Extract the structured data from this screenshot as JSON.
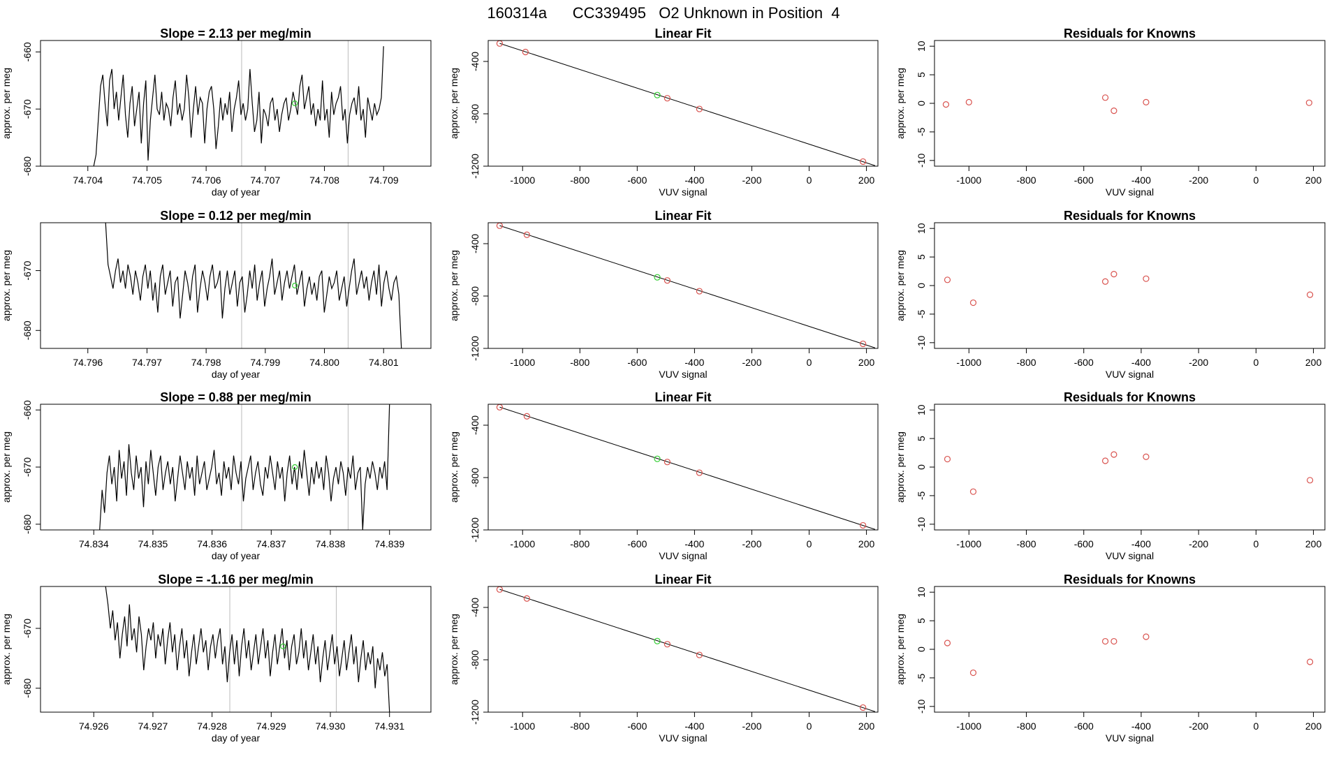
{
  "page_title": "160314a      CC339495   O2 Unknown in Position  4",
  "chart_data": [
    {
      "row": 0,
      "panel": "timeseries",
      "type": "line",
      "title": "Slope =  2.13  per meg/min",
      "xlabel": "day of year",
      "ylabel": "approx. per meg",
      "xlim": [
        74.7032,
        74.7098
      ],
      "ylim": [
        -680,
        -658
      ],
      "xticks": [
        "74.704",
        "74.705",
        "74.706",
        "74.707",
        "74.708",
        "74.709"
      ],
      "yticks": [
        "-660",
        "-670",
        "-680"
      ],
      "vlines": [
        74.7066,
        74.7084
      ],
      "marker": {
        "x": 74.7075,
        "y": -669
      },
      "series": {
        "x_start": 74.7041,
        "x_end": 74.709,
        "y": [
          -680,
          -678,
          -672,
          -666,
          -664,
          -669,
          -673,
          -665,
          -663,
          -670,
          -667,
          -672,
          -668,
          -664,
          -671,
          -675,
          -669,
          -666,
          -673,
          -670,
          -667,
          -676,
          -669,
          -665,
          -679,
          -672,
          -668,
          -664,
          -670,
          -671,
          -667,
          -672,
          -669,
          -670,
          -673,
          -668,
          -665,
          -671,
          -669,
          -672,
          -670,
          -664,
          -668,
          -675,
          -670,
          -666,
          -671,
          -668,
          -669,
          -676,
          -670,
          -667,
          -666,
          -670,
          -677,
          -673,
          -668,
          -672,
          -669,
          -671,
          -667,
          -674,
          -670,
          -668,
          -665,
          -671,
          -669,
          -672,
          -670,
          -663,
          -669,
          -674,
          -672,
          -667,
          -676,
          -670,
          -671,
          -673,
          -669,
          -668,
          -672,
          -670,
          -674,
          -671,
          -669,
          -668,
          -672,
          -670,
          -667,
          -669,
          -671,
          -666,
          -664,
          -670,
          -668,
          -666,
          -671,
          -669,
          -673,
          -670,
          -672,
          -665,
          -672,
          -670,
          -675,
          -667,
          -671,
          -669,
          -668,
          -666,
          -672,
          -670,
          -676,
          -671,
          -669,
          -668,
          -671,
          -666,
          -672,
          -670,
          -675,
          -668,
          -670,
          -672,
          -669,
          -671,
          -670,
          -668,
          -659
        ]
      }
    },
    {
      "row": 0,
      "panel": "fit",
      "type": "scatter",
      "title": "Linear Fit",
      "xlabel": "VUV signal",
      "ylabel": "approx. per meg",
      "xlim": [
        -1120,
        240
      ],
      "ylim": [
        -1200,
        -240
      ],
      "xticks": [
        "-1000",
        "-800",
        "-600",
        "-400",
        "-200",
        "0",
        "200"
      ],
      "yticks": [
        "-400",
        "-800",
        "-1200"
      ],
      "line": [
        [
          -1080,
          -262
        ],
        [
          230,
          -1196
        ]
      ],
      "points": [
        [
          -1080,
          -263
        ],
        [
          -990,
          -328
        ],
        [
          -495,
          -681
        ],
        [
          -383,
          -763
        ],
        [
          188,
          -1165
        ]
      ],
      "unknown": [
        [
          -530,
          -657
        ]
      ]
    },
    {
      "row": 0,
      "panel": "residuals",
      "type": "scatter",
      "title": "Residuals for Knowns",
      "xlabel": "VUV signal",
      "ylabel": "approx. per meg",
      "xlim": [
        -1120,
        240
      ],
      "ylim": [
        -11,
        11
      ],
      "xticks": [
        "-1000",
        "-800",
        "-600",
        "-400",
        "-200",
        "0",
        "200"
      ],
      "yticks": [
        "10",
        "5",
        "0",
        "-5",
        "-10"
      ],
      "points": [
        [
          -1080,
          -0.2
        ],
        [
          -1000,
          0.2
        ],
        [
          -525,
          1.0
        ],
        [
          -495,
          -1.3
        ],
        [
          -383,
          0.2
        ],
        [
          185,
          0.1
        ]
      ]
    },
    {
      "row": 1,
      "panel": "timeseries",
      "type": "line",
      "title": "Slope =  0.12  per meg/min",
      "xlabel": "day of year",
      "ylabel": "approx. per meg",
      "xlim": [
        74.7952,
        74.8018
      ],
      "ylim": [
        -683,
        -662
      ],
      "xticks": [
        "74.796",
        "74.797",
        "74.798",
        "74.799",
        "74.800",
        "74.801"
      ],
      "yticks": [
        "-670",
        "-680"
      ],
      "vlines": [
        74.7986,
        74.8004
      ],
      "marker": {
        "x": 74.7995,
        "y": -672.5
      },
      "series": {
        "x_start": 74.7963,
        "x_end": 74.8013,
        "y": [
          -662,
          -669,
          -671,
          -673,
          -670,
          -668,
          -672,
          -670,
          -673,
          -669,
          -671,
          -674,
          -670,
          -672,
          -675,
          -671,
          -669,
          -673,
          -670,
          -675,
          -672,
          -677,
          -671,
          -669,
          -674,
          -672,
          -670,
          -676,
          -672,
          -671,
          -678,
          -674,
          -670,
          -672,
          -675,
          -671,
          -669,
          -677,
          -673,
          -670,
          -672,
          -675,
          -671,
          -669,
          -673,
          -672,
          -670,
          -678,
          -673,
          -670,
          -674,
          -672,
          -670,
          -676,
          -672,
          -671,
          -677,
          -674,
          -670,
          -673,
          -669,
          -675,
          -672,
          -670,
          -676,
          -673,
          -671,
          -668,
          -674,
          -672,
          -670,
          -675,
          -672,
          -670,
          -673,
          -671,
          -669,
          -674,
          -672,
          -670,
          -676,
          -673,
          -671,
          -674,
          -672,
          -675,
          -671,
          -670,
          -677,
          -674,
          -671,
          -673,
          -672,
          -670,
          -675,
          -673,
          -671,
          -676,
          -673,
          -670,
          -668,
          -674,
          -672,
          -670,
          -673,
          -671,
          -675,
          -672,
          -670,
          -674,
          -669,
          -676,
          -672,
          -670,
          -673,
          -675,
          -672,
          -671,
          -674,
          -683
        ]
      }
    },
    {
      "row": 1,
      "panel": "fit",
      "type": "scatter",
      "title": "Linear Fit",
      "xlabel": "VUV signal",
      "ylabel": "approx. per meg",
      "xlim": [
        -1120,
        240
      ],
      "ylim": [
        -1200,
        -240
      ],
      "xticks": [
        "-1000",
        "-800",
        "-600",
        "-400",
        "-200",
        "0",
        "200"
      ],
      "yticks": [
        "-400",
        "-800",
        "-1200"
      ],
      "line": [
        [
          -1080,
          -262
        ],
        [
          230,
          -1196
        ]
      ],
      "points": [
        [
          -1080,
          -263
        ],
        [
          -985,
          -332
        ],
        [
          -495,
          -681
        ],
        [
          -383,
          -763
        ],
        [
          188,
          -1165
        ]
      ],
      "unknown": [
        [
          -530,
          -657
        ]
      ]
    },
    {
      "row": 1,
      "panel": "residuals",
      "type": "scatter",
      "title": "Residuals for Knowns",
      "xlabel": "VUV signal",
      "ylabel": "approx. per meg",
      "xlim": [
        -1120,
        240
      ],
      "ylim": [
        -11,
        11
      ],
      "xticks": [
        "-1000",
        "-800",
        "-600",
        "-400",
        "-200",
        "0",
        "200"
      ],
      "yticks": [
        "10",
        "5",
        "0",
        "-5",
        "-10"
      ],
      "points": [
        [
          -1075,
          1.0
        ],
        [
          -985,
          -3.0
        ],
        [
          -525,
          0.7
        ],
        [
          -495,
          2.0
        ],
        [
          -383,
          1.2
        ],
        [
          188,
          -1.6
        ]
      ]
    },
    {
      "row": 2,
      "panel": "timeseries",
      "type": "line",
      "title": "Slope =  0.88  per meg/min",
      "xlabel": "day of year",
      "ylabel": "approx. per meg",
      "xlim": [
        74.8331,
        74.8397
      ],
      "ylim": [
        -681,
        -659
      ],
      "xticks": [
        "74.834",
        "74.835",
        "74.836",
        "74.837",
        "74.838",
        "74.839"
      ],
      "yticks": [
        "-660",
        "-670",
        "-680"
      ],
      "vlines": [
        74.8365,
        74.8383
      ],
      "marker": {
        "x": 74.8374,
        "y": -670
      },
      "series": {
        "x_start": 74.8341,
        "x_end": 74.839,
        "y": [
          -681,
          -674,
          -678,
          -671,
          -668,
          -673,
          -670,
          -676,
          -667,
          -672,
          -669,
          -675,
          -666,
          -671,
          -674,
          -668,
          -672,
          -670,
          -677,
          -669,
          -673,
          -667,
          -671,
          -675,
          -670,
          -668,
          -674,
          -671,
          -669,
          -673,
          -670,
          -676,
          -672,
          -668,
          -671,
          -674,
          -669,
          -672,
          -670,
          -675,
          -668,
          -673,
          -671,
          -669,
          -674,
          -672,
          -670,
          -667,
          -673,
          -671,
          -675,
          -669,
          -672,
          -670,
          -674,
          -668,
          -671,
          -673,
          -669,
          -676,
          -672,
          -670,
          -668,
          -674,
          -671,
          -669,
          -673,
          -675,
          -670,
          -672,
          -668,
          -671,
          -674,
          -669,
          -672,
          -670,
          -676,
          -671,
          -668,
          -673,
          -670,
          -674,
          -669,
          -672,
          -667,
          -671,
          -675,
          -670,
          -673,
          -669,
          -672,
          -670,
          -674,
          -668,
          -671,
          -676,
          -672,
          -670,
          -673,
          -669,
          -671,
          -675,
          -670,
          -672,
          -668,
          -674,
          -671,
          -670,
          -681,
          -673,
          -670,
          -672,
          -669,
          -671,
          -674,
          -670,
          -672,
          -669,
          -674,
          -659
        ]
      }
    },
    {
      "row": 2,
      "panel": "fit",
      "type": "scatter",
      "title": "Linear Fit",
      "xlabel": "VUV signal",
      "ylabel": "approx. per meg",
      "xlim": [
        -1120,
        240
      ],
      "ylim": [
        -1200,
        -240
      ],
      "xticks": [
        "-1000",
        "-800",
        "-600",
        "-400",
        "-200",
        "0",
        "200"
      ],
      "yticks": [
        "-400",
        "-800",
        "-1200"
      ],
      "line": [
        [
          -1080,
          -262
        ],
        [
          230,
          -1196
        ]
      ],
      "points": [
        [
          -1080,
          -263
        ],
        [
          -985,
          -332
        ],
        [
          -495,
          -681
        ],
        [
          -383,
          -763
        ],
        [
          188,
          -1165
        ]
      ],
      "unknown": [
        [
          -530,
          -657
        ]
      ]
    },
    {
      "row": 2,
      "panel": "residuals",
      "type": "scatter",
      "title": "Residuals for Knowns",
      "xlabel": "VUV signal",
      "ylabel": "approx. per meg",
      "xlim": [
        -1120,
        240
      ],
      "ylim": [
        -11,
        11
      ],
      "xticks": [
        "-1000",
        "-800",
        "-600",
        "-400",
        "-200",
        "0",
        "200"
      ],
      "yticks": [
        "10",
        "5",
        "0",
        "-5",
        "-10"
      ],
      "points": [
        [
          -1075,
          1.4
        ],
        [
          -985,
          -4.3
        ],
        [
          -525,
          1.1
        ],
        [
          -495,
          2.2
        ],
        [
          -383,
          1.8
        ],
        [
          188,
          -2.3
        ]
      ]
    },
    {
      "row": 3,
      "panel": "timeseries",
      "type": "line",
      "title": "Slope =  -1.16  per meg/min",
      "xlabel": "day of year",
      "ylabel": "approx. per meg",
      "xlim": [
        74.9251,
        74.9317
      ],
      "ylim": [
        -684,
        -663
      ],
      "xticks": [
        "74.926",
        "74.927",
        "74.928",
        "74.929",
        "74.930",
        "74.931"
      ],
      "yticks": [
        "-670",
        "-680"
      ],
      "vlines": [
        74.9283,
        74.9301
      ],
      "marker": {
        "x": 74.9292,
        "y": -673
      },
      "series": {
        "x_start": 74.9262,
        "x_end": 74.931,
        "y": [
          -663,
          -666,
          -670,
          -667,
          -672,
          -669,
          -675,
          -671,
          -668,
          -673,
          -666,
          -672,
          -670,
          -674,
          -668,
          -671,
          -677,
          -673,
          -670,
          -672,
          -669,
          -675,
          -671,
          -673,
          -670,
          -676,
          -672,
          -669,
          -674,
          -671,
          -677,
          -673,
          -670,
          -675,
          -672,
          -678,
          -674,
          -671,
          -676,
          -673,
          -670,
          -674,
          -672,
          -677,
          -673,
          -671,
          -675,
          -672,
          -670,
          -676,
          -673,
          -679,
          -674,
          -671,
          -676,
          -672,
          -678,
          -673,
          -670,
          -675,
          -672,
          -677,
          -674,
          -671,
          -676,
          -673,
          -670,
          -675,
          -672,
          -678,
          -674,
          -671,
          -676,
          -673,
          -670,
          -675,
          -672,
          -677,
          -673,
          -671,
          -676,
          -674,
          -670,
          -675,
          -672,
          -677,
          -674,
          -671,
          -676,
          -673,
          -679,
          -675,
          -672,
          -677,
          -674,
          -671,
          -676,
          -673,
          -678,
          -675,
          -672,
          -677,
          -674,
          -671,
          -676,
          -673,
          -679,
          -675,
          -672,
          -677,
          -674,
          -676,
          -673,
          -680,
          -675,
          -677,
          -674,
          -678,
          -676,
          -684
        ]
      }
    },
    {
      "row": 3,
      "panel": "fit",
      "type": "scatter",
      "title": "Linear Fit",
      "xlabel": "VUV signal",
      "ylabel": "approx. per meg",
      "xlim": [
        -1120,
        240
      ],
      "ylim": [
        -1200,
        -240
      ],
      "xticks": [
        "-1000",
        "-800",
        "-600",
        "-400",
        "-200",
        "0",
        "200"
      ],
      "yticks": [
        "-400",
        "-800",
        "-1200"
      ],
      "line": [
        [
          -1080,
          -262
        ],
        [
          230,
          -1196
        ]
      ],
      "points": [
        [
          -1080,
          -263
        ],
        [
          -985,
          -332
        ],
        [
          -495,
          -681
        ],
        [
          -383,
          -763
        ],
        [
          188,
          -1165
        ]
      ],
      "unknown": [
        [
          -530,
          -657
        ]
      ]
    },
    {
      "row": 3,
      "panel": "residuals",
      "type": "scatter",
      "title": "Residuals for Knowns",
      "xlabel": "VUV signal",
      "ylabel": "approx. per meg",
      "xlim": [
        -1120,
        240
      ],
      "ylim": [
        -11,
        11
      ],
      "xticks": [
        "-1000",
        "-800",
        "-600",
        "-400",
        "-200",
        "0",
        "200"
      ],
      "yticks": [
        "10",
        "5",
        "0",
        "-5",
        "-10"
      ],
      "points": [
        [
          -1075,
          1.1
        ],
        [
          -985,
          -4.1
        ],
        [
          -525,
          1.4
        ],
        [
          -495,
          1.4
        ],
        [
          -383,
          2.2
        ],
        [
          188,
          -2.2
        ]
      ]
    }
  ],
  "colors": {
    "line": "#000000",
    "known_point": "#d9534f",
    "unknown_point": "#33cc33",
    "vline": "#bbbbbb",
    "box": "#000000"
  }
}
